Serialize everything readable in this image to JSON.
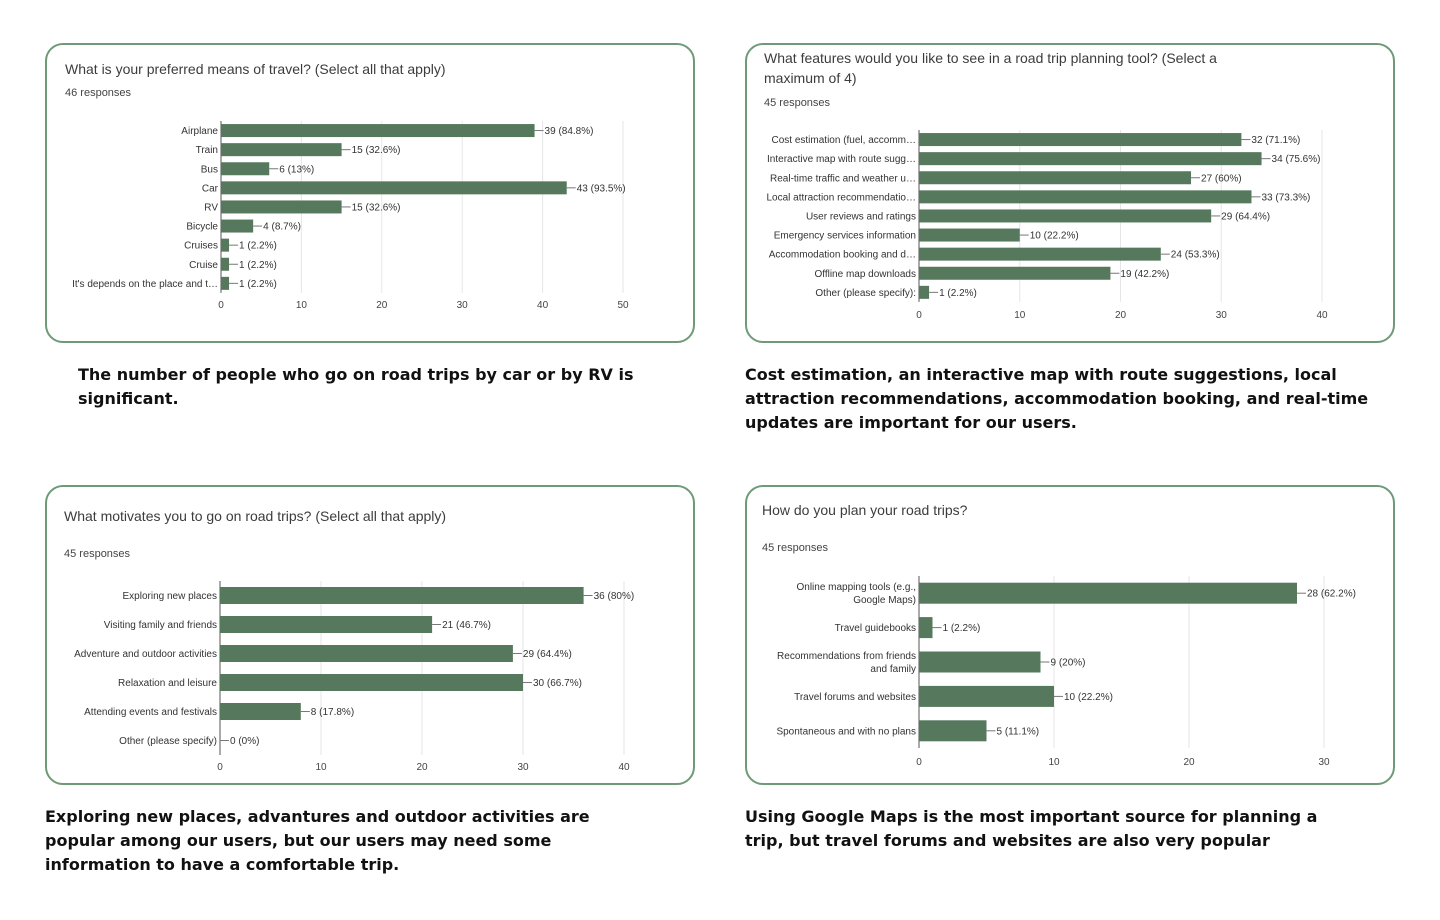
{
  "colors": {
    "bar": "#56795d",
    "border": "#6f9a78",
    "grid": "#e6e6e6",
    "axis": "#555555"
  },
  "chart_data": [
    {
      "type": "bar",
      "orientation": "horizontal",
      "title": "What is your preferred means of travel? (Select all that apply)",
      "responses": "46 responses",
      "categories": [
        "Airplane",
        "Train",
        "Bus",
        "Car",
        "RV",
        "Bicycle",
        "Cruises",
        "Cruise",
        "It's depends on the place and t…"
      ],
      "values": [
        39,
        15,
        6,
        43,
        15,
        4,
        1,
        1,
        1
      ],
      "data_labels": [
        "39 (84.8%)",
        "15 (32.6%)",
        "6 (13%)",
        "43 (93.5%)",
        "15 (32.6%)",
        "4 (8.7%)",
        "1 (2.2%)",
        "1 (2.2%)",
        "1 (2.2%)"
      ],
      "xlim": [
        0,
        50
      ],
      "xticks": [
        0,
        10,
        20,
        30,
        40,
        50
      ],
      "grid": true,
      "caption": "The number of people who go on road trips by car or by RV is significant."
    },
    {
      "type": "bar",
      "orientation": "horizontal",
      "title_lines": [
        "What features would you like to see in a road trip planning tool? (Select a",
        "maximum of 4)"
      ],
      "responses": "45 responses",
      "categories": [
        "Cost estimation (fuel, accomm…",
        "Interactive map with route sugg…",
        "Real-time traffic and weather u…",
        "Local attraction recommendatio…",
        "User reviews and ratings",
        "Emergency services information",
        "Accommodation booking and d…",
        "Offline map downloads",
        "Other (please specify):"
      ],
      "values": [
        32,
        34,
        27,
        33,
        29,
        10,
        24,
        19,
        1
      ],
      "data_labels": [
        "32 (71.1%)",
        "34 (75.6%)",
        "27 (60%)",
        "33 (73.3%)",
        "29 (64.4%)",
        "10 (22.2%)",
        "24 (53.3%)",
        "19 (42.2%)",
        "1 (2.2%)"
      ],
      "xlim": [
        0,
        40
      ],
      "xticks": [
        0,
        10,
        20,
        30,
        40
      ],
      "grid": true,
      "caption": "Cost estimation, an interactive map with route suggestions, local attraction recommendations, accommodation booking, and real-time updates are important for our users."
    },
    {
      "type": "bar",
      "orientation": "horizontal",
      "title": "What motivates you to go on road trips? (Select all that apply)",
      "responses": "45 responses",
      "categories": [
        "Exploring new places",
        "Visiting family and friends",
        "Adventure and outdoor activities",
        "Relaxation and leisure",
        "Attending events and festivals",
        "Other (please specify)"
      ],
      "values": [
        36,
        21,
        29,
        30,
        8,
        0
      ],
      "data_labels": [
        "36 (80%)",
        "21 (46.7%)",
        "29 (64.4%)",
        "30 (66.7%)",
        "8 (17.8%)",
        "0 (0%)"
      ],
      "xlim": [
        0,
        40
      ],
      "xticks": [
        0,
        10,
        20,
        30,
        40
      ],
      "grid": true,
      "caption": "Exploring new places, advantures and outdoor activities are popular among our users, but our users may need some information to have a comfortable trip."
    },
    {
      "type": "bar",
      "orientation": "horizontal",
      "title": "How do you plan your road trips?",
      "responses": "45 responses",
      "categories": [
        [
          "Online mapping tools (e.g.,",
          "Google Maps)"
        ],
        [
          "Travel guidebooks"
        ],
        [
          "Recommendations from friends",
          "and family"
        ],
        [
          "Travel forums and websites"
        ],
        [
          "Spontaneous and with no plans"
        ]
      ],
      "values": [
        28,
        1,
        9,
        10,
        5
      ],
      "data_labels": [
        "28 (62.2%)",
        "1 (2.2%)",
        "9 (20%)",
        "10 (22.2%)",
        "5 (11.1%)"
      ],
      "xlim": [
        0,
        30
      ],
      "xticks": [
        0,
        10,
        20,
        30
      ],
      "grid": true,
      "caption": "Using Google Maps is the most important source for planning a trip, but travel forums and websites are also very popular"
    }
  ]
}
